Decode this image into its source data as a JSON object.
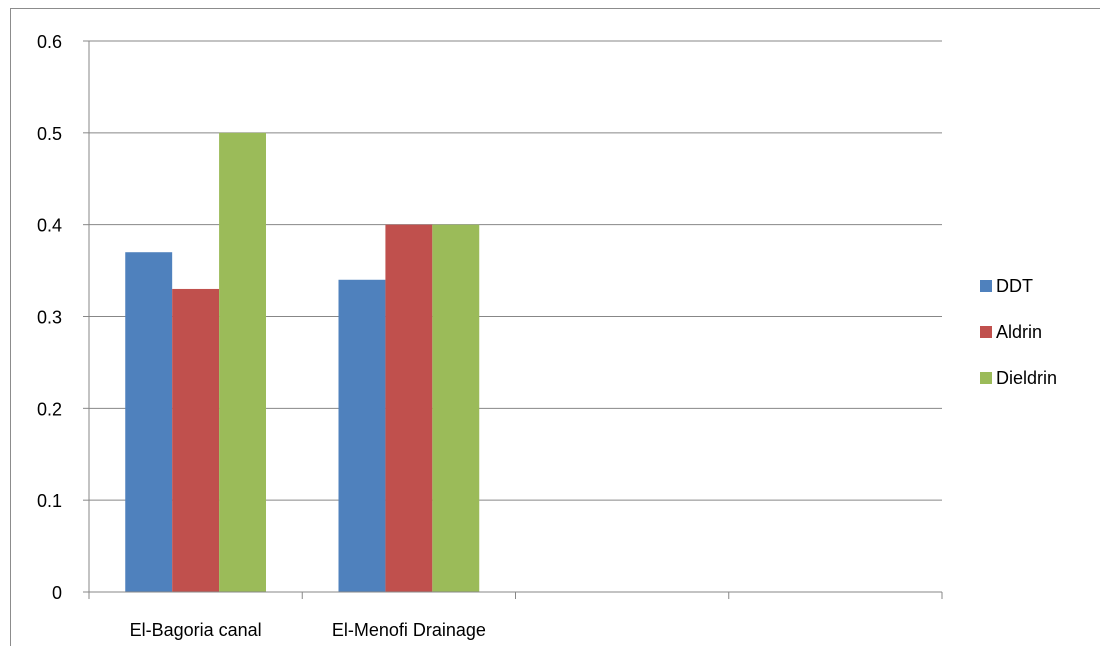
{
  "chart_data": {
    "type": "bar",
    "categories": [
      "El-Bagoria canal",
      "El-Menofi Drainage",
      "",
      ""
    ],
    "series": [
      {
        "name": "DDT",
        "color": "#4f81bd",
        "values": [
          0.37,
          0.34,
          null,
          null
        ]
      },
      {
        "name": "Aldrin",
        "color": "#c0504d",
        "values": [
          0.33,
          0.4,
          null,
          null
        ]
      },
      {
        "name": "Dieldrin",
        "color": "#9bbb59",
        "values": [
          0.5,
          0.4,
          null,
          null
        ]
      }
    ],
    "y_ticks": [
      "0",
      "0.1",
      "0.2",
      "0.3",
      "0.4",
      "0.5",
      "0.6"
    ],
    "ylim": [
      0,
      0.6
    ],
    "title": "",
    "xlabel": "",
    "ylabel": "",
    "grid": true,
    "legend_position": "right"
  }
}
